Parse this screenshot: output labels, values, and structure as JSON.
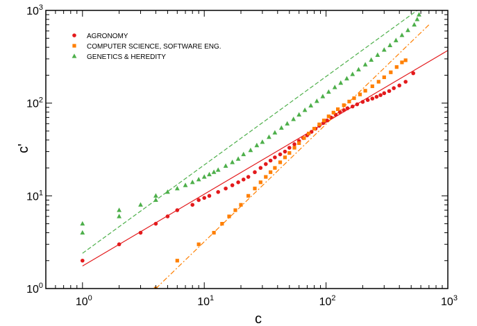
{
  "chart_data": {
    "type": "scatter",
    "xlabel": "c",
    "ylabel": "c'",
    "xscale": "log",
    "yscale": "log",
    "xlim": [
      0.5,
      1000
    ],
    "ylim": [
      1,
      1000
    ],
    "xticks": [
      {
        "base": "10",
        "exp": "0",
        "value": 1
      },
      {
        "base": "10",
        "exp": "1",
        "value": 10
      },
      {
        "base": "10",
        "exp": "2",
        "value": 100
      },
      {
        "base": "10",
        "exp": "3",
        "value": 1000
      }
    ],
    "yticks": [
      {
        "base": "10",
        "exp": "0",
        "value": 1
      },
      {
        "base": "10",
        "exp": "1",
        "value": 10
      },
      {
        "base": "10",
        "exp": "2",
        "value": 100
      },
      {
        "base": "10",
        "exp": "3",
        "value": 1000
      }
    ],
    "grid": false,
    "legend_position": "top-left",
    "series": [
      {
        "name": "AGRONOMY",
        "color": "#e31a1c",
        "marker": "circle",
        "fit": {
          "style": "solid",
          "x": [
            1,
            1000
          ],
          "y": [
            1.75,
            370
          ]
        },
        "points": [
          [
            1,
            2
          ],
          [
            2,
            3
          ],
          [
            3,
            4
          ],
          [
            4,
            5
          ],
          [
            5,
            6
          ],
          [
            6,
            7
          ],
          [
            8,
            8
          ],
          [
            9,
            9
          ],
          [
            10,
            9.5
          ],
          [
            11,
            10
          ],
          [
            13,
            11
          ],
          [
            15,
            12
          ],
          [
            17,
            13
          ],
          [
            19,
            14
          ],
          [
            21,
            15
          ],
          [
            23,
            16
          ],
          [
            26,
            18
          ],
          [
            29,
            20
          ],
          [
            32,
            22
          ],
          [
            35,
            24
          ],
          [
            38,
            26
          ],
          [
            42,
            28
          ],
          [
            46,
            30
          ],
          [
            50,
            33
          ],
          [
            55,
            36
          ],
          [
            60,
            39
          ],
          [
            65,
            42
          ],
          [
            70,
            45
          ],
          [
            76,
            49
          ],
          [
            82,
            53
          ],
          [
            88,
            57
          ],
          [
            95,
            61
          ],
          [
            102,
            65
          ],
          [
            110,
            70
          ],
          [
            120,
            75
          ],
          [
            130,
            80
          ],
          [
            140,
            84
          ],
          [
            150,
            88
          ],
          [
            165,
            92
          ],
          [
            180,
            97
          ],
          [
            200,
            103
          ],
          [
            220,
            108
          ],
          [
            240,
            112
          ],
          [
            260,
            117
          ],
          [
            280,
            122
          ],
          [
            300,
            128
          ],
          [
            330,
            135
          ],
          [
            360,
            145
          ],
          [
            400,
            155
          ],
          [
            450,
            170
          ],
          [
            520,
            210
          ]
        ]
      },
      {
        "name": "COMPUTER SCIENCE, SOFTWARE ENG.",
        "color": "#ff7f00",
        "marker": "square",
        "fit": {
          "style": "dashdot",
          "x": [
            4,
            700
          ],
          "y": [
            1,
            700
          ]
        },
        "points": [
          [
            4,
            1
          ],
          [
            6,
            2
          ],
          [
            9,
            3
          ],
          [
            12,
            4
          ],
          [
            14,
            5
          ],
          [
            16,
            6
          ],
          [
            18,
            7
          ],
          [
            20,
            8
          ],
          [
            23,
            10
          ],
          [
            26,
            12
          ],
          [
            29,
            14
          ],
          [
            32,
            16
          ],
          [
            35,
            18
          ],
          [
            38,
            20
          ],
          [
            42,
            23
          ],
          [
            46,
            26
          ],
          [
            50,
            29
          ],
          [
            55,
            33
          ],
          [
            60,
            37
          ],
          [
            66,
            42
          ],
          [
            72,
            47
          ],
          [
            80,
            53
          ],
          [
            88,
            59
          ],
          [
            96,
            65
          ],
          [
            105,
            72
          ],
          [
            115,
            79
          ],
          [
            125,
            86
          ],
          [
            140,
            95
          ],
          [
            155,
            104
          ],
          [
            170,
            113
          ],
          [
            190,
            124
          ],
          [
            210,
            136
          ],
          [
            240,
            152
          ],
          [
            270,
            170
          ],
          [
            300,
            190
          ],
          [
            340,
            215
          ],
          [
            380,
            245
          ],
          [
            420,
            275
          ],
          [
            450,
            290
          ]
        ]
      },
      {
        "name": "GENETICS & HEREDITY",
        "color": "#4daf4a",
        "marker": "triangle",
        "fit": {
          "style": "dashed",
          "x": [
            1,
            560
          ],
          "y": [
            2.4,
            1000
          ]
        },
        "points": [
          [
            1,
            4
          ],
          [
            1,
            5
          ],
          [
            2,
            6
          ],
          [
            2,
            7
          ],
          [
            3,
            8
          ],
          [
            4,
            9
          ],
          [
            4,
            10
          ],
          [
            5,
            11
          ],
          [
            6,
            12
          ],
          [
            7,
            13
          ],
          [
            8,
            14
          ],
          [
            9,
            15
          ],
          [
            10,
            16
          ],
          [
            11,
            17
          ],
          [
            12,
            18
          ],
          [
            13,
            19
          ],
          [
            15,
            21
          ],
          [
            17,
            23
          ],
          [
            19,
            25
          ],
          [
            21,
            28
          ],
          [
            24,
            31
          ],
          [
            27,
            35
          ],
          [
            30,
            38
          ],
          [
            34,
            43
          ],
          [
            38,
            48
          ],
          [
            43,
            54
          ],
          [
            48,
            60
          ],
          [
            54,
            67
          ],
          [
            60,
            75
          ],
          [
            67,
            84
          ],
          [
            75,
            94
          ],
          [
            84,
            105
          ],
          [
            94,
            118
          ],
          [
            105,
            132
          ],
          [
            118,
            148
          ],
          [
            132,
            165
          ],
          [
            148,
            184
          ],
          [
            165,
            205
          ],
          [
            185,
            230
          ],
          [
            210,
            260
          ],
          [
            235,
            292
          ],
          [
            265,
            330
          ],
          [
            300,
            375
          ],
          [
            335,
            420
          ],
          [
            375,
            475
          ],
          [
            420,
            540
          ],
          [
            470,
            610
          ],
          [
            530,
            700
          ],
          [
            560,
            800
          ],
          [
            580,
            900
          ]
        ]
      }
    ]
  }
}
